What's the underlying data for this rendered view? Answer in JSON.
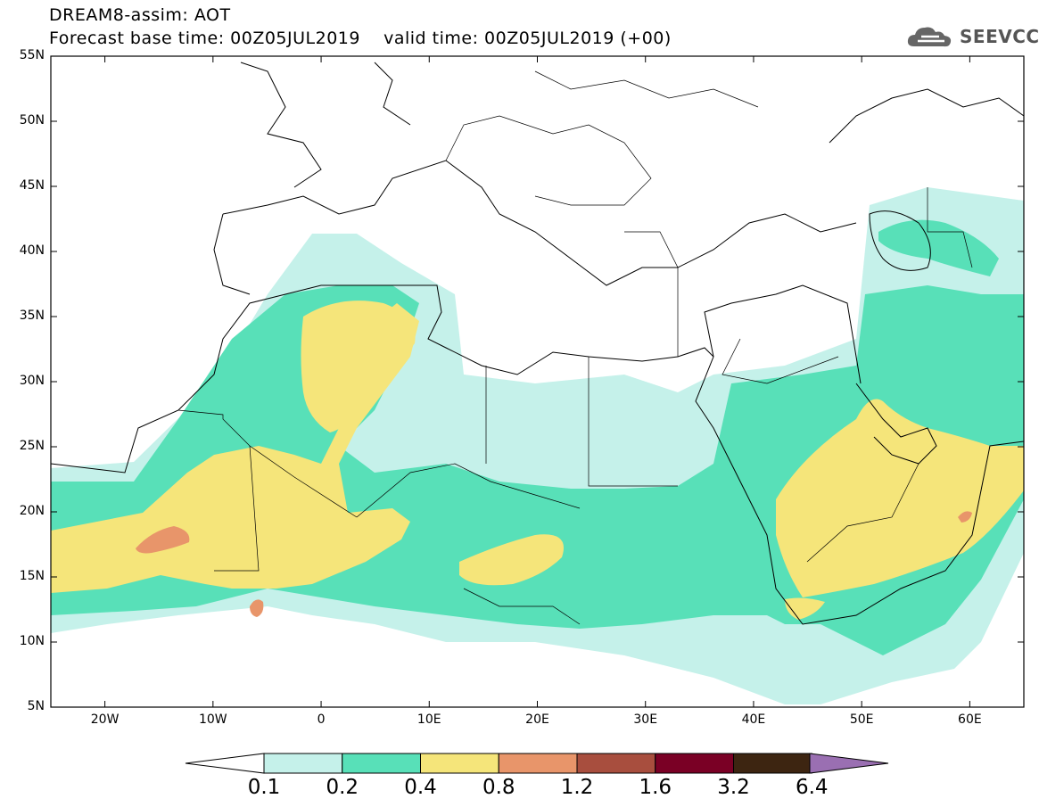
{
  "header": {
    "line1": "DREAM8-assim: AOT",
    "line2": "Forecast base time: 00Z05JUL2019    valid time: 00Z05JUL2019 (+00)"
  },
  "logo": {
    "text": "SEEVCCC",
    "icon": "cloud-icon",
    "color": "#555555"
  },
  "map": {
    "lon_range": [
      -25,
      65
    ],
    "lat_range": [
      5,
      55
    ],
    "lat_labels": [
      "55N",
      "50N",
      "45N",
      "40N",
      "35N",
      "30N",
      "25N",
      "20N",
      "15N",
      "10N",
      "5N"
    ],
    "lat_values": [
      55,
      50,
      45,
      40,
      35,
      30,
      25,
      20,
      15,
      10,
      5
    ],
    "lon_labels": [
      "20W",
      "10W",
      "0",
      "10E",
      "20E",
      "30E",
      "40E",
      "50E",
      "60E"
    ],
    "lon_values": [
      -20,
      -10,
      0,
      10,
      20,
      30,
      40,
      50,
      60
    ]
  },
  "colorbar": {
    "labels": [
      "0.1",
      "0.2",
      "0.4",
      "0.8",
      "1.2",
      "1.6",
      "3.2",
      "6.4"
    ],
    "colors": [
      "#c5f1ea",
      "#58e0b8",
      "#f5e57a",
      "#e8956a",
      "#a84e3e",
      "#7a0025",
      "#3d2511",
      "#9a6fb2"
    ],
    "under_color": "#ffffff"
  }
}
